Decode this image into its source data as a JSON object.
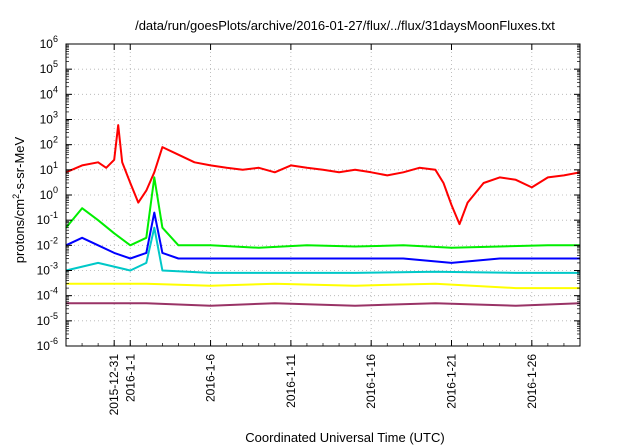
{
  "chart_data": {
    "type": "line",
    "title": "/data/run/goesPlots/archive/2016-01-27/flux/../flux/31daysMoonFluxes.txt",
    "xlabel": "Coordinated Universal Time (UTC)",
    "ylabel": "protons/cm2-s-sr-MeV",
    "y_scale": "log",
    "ylim": [
      1e-06,
      1000000.0
    ],
    "y_ticks": [
      {
        "value": 1e-06,
        "base": "10",
        "exp": "-6"
      },
      {
        "value": 1e-05,
        "base": "10",
        "exp": "-5"
      },
      {
        "value": 0.0001,
        "base": "10",
        "exp": "-4"
      },
      {
        "value": 0.001,
        "base": "10",
        "exp": "-3"
      },
      {
        "value": 0.01,
        "base": "10",
        "exp": "-2"
      },
      {
        "value": 0.1,
        "base": "10",
        "exp": "-1"
      },
      {
        "value": 1,
        "base": "10",
        "exp": "0"
      },
      {
        "value": 10,
        "base": "10",
        "exp": "1"
      },
      {
        "value": 100,
        "base": "10",
        "exp": "2"
      },
      {
        "value": 1000,
        "base": "10",
        "exp": "3"
      },
      {
        "value": 10000,
        "base": "10",
        "exp": "4"
      },
      {
        "value": 100000,
        "base": "10",
        "exp": "5"
      },
      {
        "value": 1000000,
        "base": "10",
        "exp": "6"
      }
    ],
    "xlim": [
      "2015-12-28",
      "2016-01-29"
    ],
    "x_ticks": [
      "2015-12-31",
      "2016-1-1",
      "2016-1-6",
      "2016-1-11",
      "2016-1-16",
      "2016-1-21",
      "2016-1-26"
    ],
    "x_tick_dates": [
      "2015-12-31",
      "2016-01-01",
      "2016-01-06",
      "2016-01-11",
      "2016-01-16",
      "2016-01-21",
      "2016-01-26"
    ],
    "grid": true,
    "legend": "none",
    "series": [
      {
        "color": "#ff0000",
        "dates": [
          "2015-12-28",
          "2015-12-29",
          "2015-12-30",
          "2015-12-30T12",
          "2015-12-31",
          "2015-12-31T06",
          "2015-12-31T12",
          "2016-01-01",
          "2016-01-01T12",
          "2016-01-02",
          "2016-01-02T12",
          "2016-01-03",
          "2016-01-04",
          "2016-01-05",
          "2016-01-06",
          "2016-01-07",
          "2016-01-08",
          "2016-01-09",
          "2016-01-10",
          "2016-01-11",
          "2016-01-12",
          "2016-01-13",
          "2016-01-14",
          "2016-01-15",
          "2016-01-16",
          "2016-01-17",
          "2016-01-18",
          "2016-01-19",
          "2016-01-20",
          "2016-01-20T12",
          "2016-01-21",
          "2016-01-21T12",
          "2016-01-22",
          "2016-01-23",
          "2016-01-24",
          "2016-01-25",
          "2016-01-26",
          "2016-01-27",
          "2016-01-28",
          "2016-01-29"
        ],
        "values": [
          8,
          15,
          20,
          12,
          25,
          600,
          20,
          3,
          0.5,
          1.5,
          8,
          80,
          40,
          20,
          15,
          12,
          10,
          12,
          8,
          15,
          12,
          10,
          8,
          10,
          8,
          6,
          8,
          12,
          10,
          3,
          0.4,
          0.07,
          0.5,
          3,
          5,
          4,
          2,
          5,
          6,
          8
        ]
      },
      {
        "color": "#00ee00",
        "dates": [
          "2015-12-28",
          "2015-12-29",
          "2015-12-30",
          "2015-12-31",
          "2016-01-01",
          "2016-01-02",
          "2016-01-02T12",
          "2016-01-03",
          "2016-01-04",
          "2016-01-06",
          "2016-01-09",
          "2016-01-12",
          "2016-01-15",
          "2016-01-18",
          "2016-01-21",
          "2016-01-24",
          "2016-01-27",
          "2016-01-29"
        ],
        "values": [
          0.05,
          0.3,
          0.1,
          0.03,
          0.01,
          0.02,
          5,
          0.05,
          0.01,
          0.01,
          0.008,
          0.01,
          0.009,
          0.01,
          0.008,
          0.009,
          0.01,
          0.01
        ]
      },
      {
        "color": "#0000ff",
        "dates": [
          "2015-12-28",
          "2015-12-29",
          "2015-12-30",
          "2015-12-31",
          "2016-01-01",
          "2016-01-02",
          "2016-01-02T12",
          "2016-01-03",
          "2016-01-04",
          "2016-01-06",
          "2016-01-09",
          "2016-01-12",
          "2016-01-15",
          "2016-01-18",
          "2016-01-21",
          "2016-01-24",
          "2016-01-27",
          "2016-01-29"
        ],
        "values": [
          0.01,
          0.02,
          0.01,
          0.005,
          0.003,
          0.005,
          0.2,
          0.005,
          0.003,
          0.003,
          0.003,
          0.003,
          0.003,
          0.003,
          0.002,
          0.003,
          0.003,
          0.003
        ]
      },
      {
        "color": "#00c8c8",
        "dates": [
          "2015-12-28",
          "2015-12-30",
          "2016-01-01",
          "2016-01-02",
          "2016-01-02T12",
          "2016-01-03",
          "2016-01-06",
          "2016-01-10",
          "2016-01-15",
          "2016-01-20",
          "2016-01-25",
          "2016-01-29"
        ],
        "values": [
          0.001,
          0.002,
          0.001,
          0.002,
          0.05,
          0.001,
          0.0008,
          0.0008,
          0.0008,
          0.0009,
          0.0008,
          0.0008
        ]
      },
      {
        "color": "#ffff00",
        "dates": [
          "2015-12-28",
          "2016-01-02",
          "2016-01-06",
          "2016-01-10",
          "2016-01-15",
          "2016-01-20",
          "2016-01-25",
          "2016-01-29"
        ],
        "values": [
          0.0003,
          0.0003,
          0.00025,
          0.0003,
          0.00025,
          0.0003,
          0.0002,
          0.0002
        ]
      },
      {
        "color": "#993366",
        "dates": [
          "2015-12-28",
          "2016-01-02",
          "2016-01-06",
          "2016-01-10",
          "2016-01-15",
          "2016-01-20",
          "2016-01-25",
          "2016-01-29"
        ],
        "values": [
          5e-05,
          5e-05,
          4e-05,
          5e-05,
          4e-05,
          5e-05,
          4e-05,
          5e-05
        ]
      }
    ]
  }
}
